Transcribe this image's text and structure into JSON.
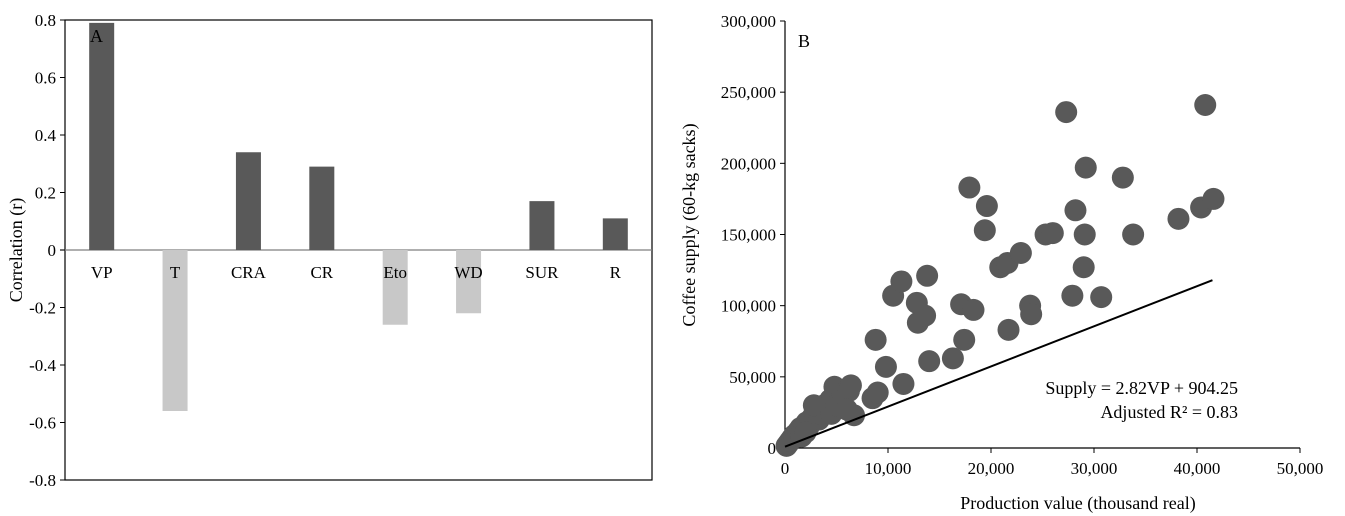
{
  "chart_data": [
    {
      "type": "bar",
      "panel_label": "A",
      "ylabel": "Correlation (r)",
      "xlabel": "",
      "ylim": [
        -0.8,
        0.8
      ],
      "y_ticks": [
        "0.8",
        "0.6",
        "0.4",
        "0.2",
        "0",
        "-0.2",
        "-0.4",
        "-0.6",
        "-0.8"
      ],
      "categories": [
        "VP",
        "T",
        "CRA",
        "CR",
        "Eto",
        "WD",
        "SUR",
        "R"
      ],
      "values": [
        0.79,
        -0.56,
        0.34,
        0.29,
        -0.26,
        -0.22,
        0.17,
        0.11
      ],
      "colors": {
        "positive": "#595959",
        "negative": "#c8c8c8"
      },
      "grid": false,
      "legend": "none"
    },
    {
      "type": "scatter",
      "panel_label": "B",
      "xlabel": "Production value (thousand real)",
      "ylabel": "Coffee supply (60-kg sacks)",
      "xlim": [
        0,
        50000
      ],
      "ylim": [
        0,
        300000
      ],
      "x_ticks": [
        "0",
        "10,000",
        "20,000",
        "30,000",
        "40,000",
        "50,000"
      ],
      "y_ticks": [
        "300,000",
        "250,000",
        "200,000",
        "150,000",
        "100,000",
        "50,000",
        "0"
      ],
      "marker_color": "#595959",
      "fit_line": {
        "x": [
          0,
          41500
        ],
        "y": [
          904.25,
          117934.25
        ],
        "color": "#000000"
      },
      "annotation": [
        "Supply = 2.82VP + 904.25",
        "Adjusted R² = 0.83"
      ],
      "points": [
        {
          "x": 150,
          "y": 1500
        },
        {
          "x": 300,
          "y": 3000
        },
        {
          "x": 500,
          "y": 5000
        },
        {
          "x": 700,
          "y": 7000
        },
        {
          "x": 900,
          "y": 9000
        },
        {
          "x": 1100,
          "y": 10000
        },
        {
          "x": 1300,
          "y": 12000
        },
        {
          "x": 1500,
          "y": 14000
        },
        {
          "x": 1700,
          "y": 12000
        },
        {
          "x": 1900,
          "y": 16000
        },
        {
          "x": 2100,
          "y": 18000
        },
        {
          "x": 2300,
          "y": 15000
        },
        {
          "x": 2500,
          "y": 20000
        },
        {
          "x": 2700,
          "y": 22000
        },
        {
          "x": 2900,
          "y": 25000
        },
        {
          "x": 3100,
          "y": 28000
        },
        {
          "x": 3300,
          "y": 20000
        },
        {
          "x": 3500,
          "y": 24000
        },
        {
          "x": 3800,
          "y": 30000
        },
        {
          "x": 4100,
          "y": 27000
        },
        {
          "x": 4400,
          "y": 34000
        },
        {
          "x": 2800,
          "y": 30000
        },
        {
          "x": 1600,
          "y": 8000
        },
        {
          "x": 2000,
          "y": 11000
        },
        {
          "x": 4500,
          "y": 24000
        },
        {
          "x": 5000,
          "y": 30000
        },
        {
          "x": 4800,
          "y": 43000
        },
        {
          "x": 5600,
          "y": 38000
        },
        {
          "x": 6200,
          "y": 40000
        },
        {
          "x": 6400,
          "y": 44000
        },
        {
          "x": 6700,
          "y": 23000
        },
        {
          "x": 6000,
          "y": 27000
        },
        {
          "x": 8500,
          "y": 35000
        },
        {
          "x": 9000,
          "y": 39000
        },
        {
          "x": 8800,
          "y": 76000
        },
        {
          "x": 9800,
          "y": 57000
        },
        {
          "x": 10500,
          "y": 107000
        },
        {
          "x": 11300,
          "y": 117000
        },
        {
          "x": 11500,
          "y": 45000
        },
        {
          "x": 12800,
          "y": 102000
        },
        {
          "x": 12900,
          "y": 88000
        },
        {
          "x": 13600,
          "y": 93000
        },
        {
          "x": 13800,
          "y": 121000
        },
        {
          "x": 14000,
          "y": 61000
        },
        {
          "x": 16300,
          "y": 63000
        },
        {
          "x": 17100,
          "y": 101000
        },
        {
          "x": 17400,
          "y": 76000
        },
        {
          "x": 17900,
          "y": 183000
        },
        {
          "x": 18300,
          "y": 97000
        },
        {
          "x": 19400,
          "y": 153000
        },
        {
          "x": 19600,
          "y": 170000
        },
        {
          "x": 20900,
          "y": 127000
        },
        {
          "x": 21600,
          "y": 130000
        },
        {
          "x": 21700,
          "y": 83000
        },
        {
          "x": 22900,
          "y": 137000
        },
        {
          "x": 23800,
          "y": 100000
        },
        {
          "x": 23900,
          "y": 94000
        },
        {
          "x": 25300,
          "y": 150000
        },
        {
          "x": 26000,
          "y": 151000
        },
        {
          "x": 27300,
          "y": 236000
        },
        {
          "x": 27900,
          "y": 107000
        },
        {
          "x": 28200,
          "y": 167000
        },
        {
          "x": 29000,
          "y": 127000
        },
        {
          "x": 29100,
          "y": 150000
        },
        {
          "x": 29200,
          "y": 197000
        },
        {
          "x": 30700,
          "y": 106000
        },
        {
          "x": 32800,
          "y": 190000
        },
        {
          "x": 33800,
          "y": 150000
        },
        {
          "x": 38200,
          "y": 161000
        },
        {
          "x": 40400,
          "y": 169000
        },
        {
          "x": 40800,
          "y": 241000
        },
        {
          "x": 41600,
          "y": 175000
        }
      ],
      "grid": false,
      "legend": "none"
    }
  ]
}
